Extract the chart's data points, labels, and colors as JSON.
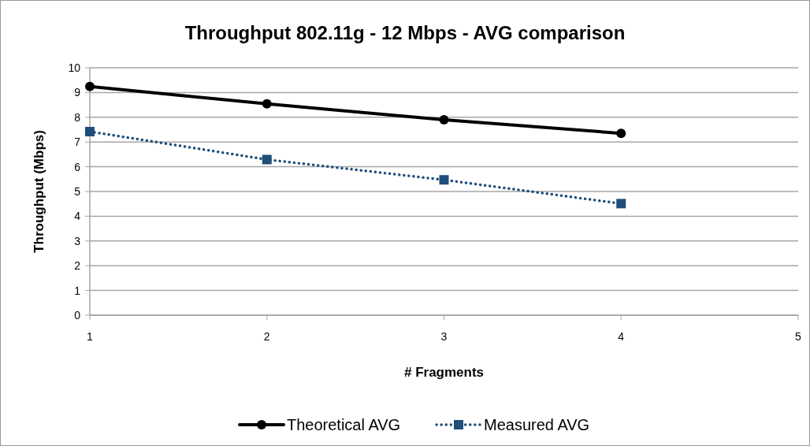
{
  "chart_data": {
    "type": "line",
    "title": "Throughput 802.11g - 12 Mbps - AVG comparison",
    "xlabel": "# Fragments",
    "ylabel": "Throughput (Mbps)",
    "x": [
      1,
      2,
      3,
      4
    ],
    "series": [
      {
        "name": "Theoretical AVG",
        "color": "#000000",
        "values": [
          9.24,
          8.54,
          7.9,
          7.35
        ],
        "marker": "circle",
        "line_style": "solid"
      },
      {
        "name": "Measured AVG",
        "color": "#1f4e79",
        "values": [
          7.42,
          6.29,
          5.47,
          4.51
        ],
        "marker": "square",
        "line_style": "dotted"
      }
    ],
    "xlim": [
      1,
      5
    ],
    "xticks": [
      1,
      2,
      3,
      4,
      5
    ],
    "ylim": [
      0,
      10
    ],
    "yticks": [
      0,
      1,
      2,
      3,
      4,
      5,
      6,
      7,
      8,
      9,
      10
    ],
    "grid": "y",
    "legend": "bottom"
  }
}
